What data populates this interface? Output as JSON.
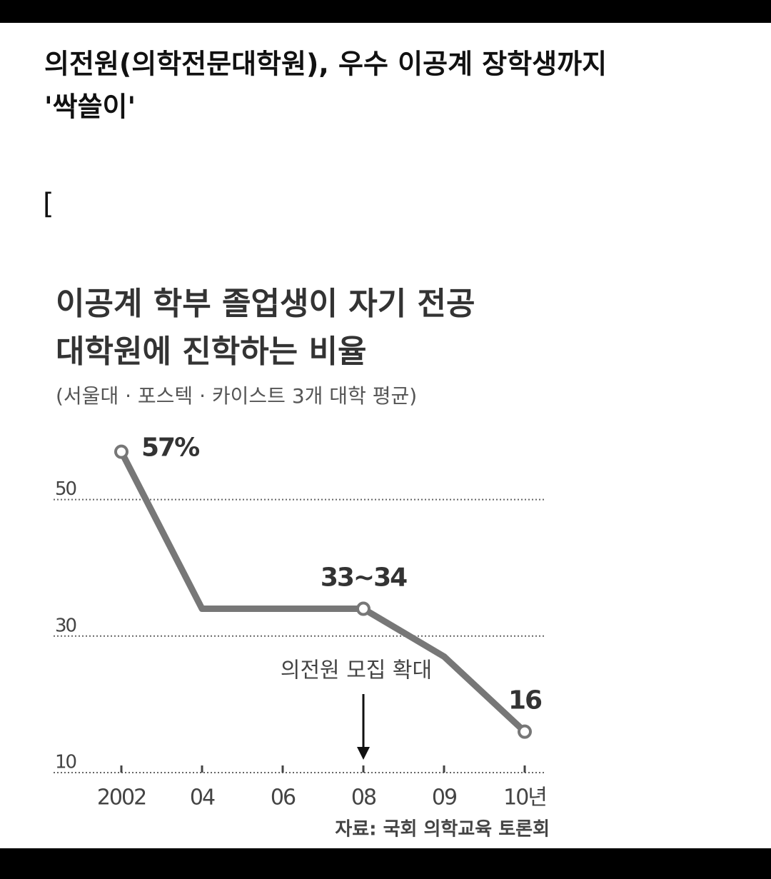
{
  "article": {
    "title": [
      "의전원(의학전문대학원), 우수 이공계 장학생까지",
      "'싹쓸이'"
    ],
    "bracket": "["
  },
  "chart_data": {
    "type": "line",
    "title": [
      "이공계 학부 졸업생이 자기 전공",
      "대학원에 진학하는 비율"
    ],
    "subtitle": "(서울대 · 포스텍 · 카이스트 3개 대학 평균)",
    "categories": [
      "2002",
      "04",
      "06",
      "08",
      "09",
      "10년"
    ],
    "series": [
      {
        "color": "#777777",
        "values": [
          57,
          34,
          34,
          34,
          27,
          16
        ],
        "value_labels": [
          "57%",
          null,
          null,
          "33~34",
          null,
          "16"
        ]
      }
    ],
    "ylim": [
      10,
      60
    ],
    "yticks": [
      10,
      30,
      50
    ],
    "grid": true,
    "annotation": {
      "text": "의전원 모집 확대",
      "category": 3
    },
    "source": "자료: 국회 의학교육 토론회"
  }
}
